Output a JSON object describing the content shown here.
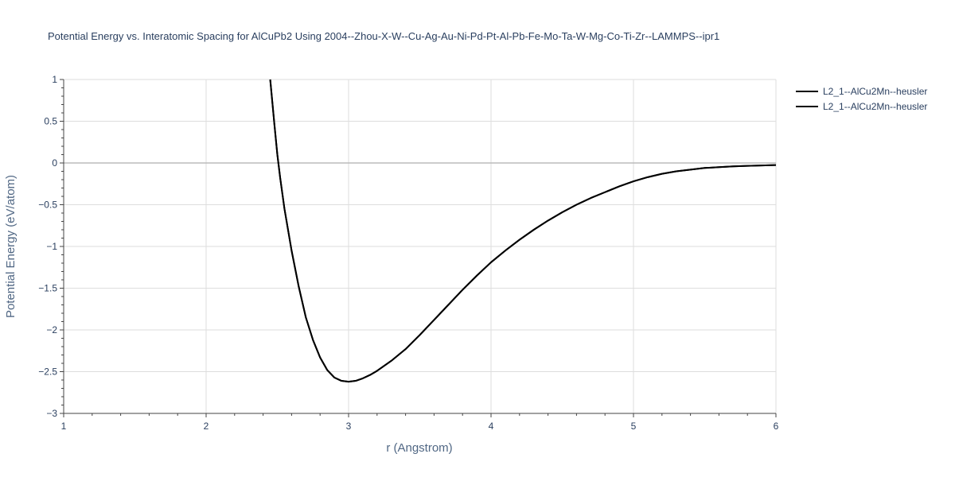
{
  "chart_data": {
    "type": "line",
    "title": "Potential Energy vs. Interatomic Spacing for AlCuPb2 Using 2004--Zhou-X-W--Cu-Ag-Au-Ni-Pd-Pt-Al-Pb-Fe-Mo-Ta-W-Mg-Co-Ti-Zr--LAMMPS--ipr1",
    "xlabel": "r (Angstrom)",
    "ylabel": "Potential Energy (eV/atom)",
    "xlim": [
      1,
      6
    ],
    "ylim": [
      -3,
      1
    ],
    "x_ticks": [
      1,
      2,
      3,
      4,
      5,
      6
    ],
    "x_tick_labels": [
      "1",
      "2",
      "3",
      "4",
      "5",
      "6"
    ],
    "y_ticks": [
      1,
      0.5,
      0,
      -0.5,
      -1,
      -1.5,
      -2,
      -2.5,
      -3
    ],
    "y_tick_labels": [
      "1",
      "0.5",
      "0",
      "−0.5",
      "−1",
      "−1.5",
      "−2",
      "−2.5",
      "−3"
    ],
    "grid": true,
    "legend_position": "top-right",
    "series": [
      {
        "name": "L2_1--AlCu2Mn--heusler",
        "color": "#000000",
        "x": [
          2.45,
          2.48,
          2.5,
          2.52,
          2.55,
          2.6,
          2.65,
          2.7,
          2.75,
          2.8,
          2.85,
          2.9,
          2.95,
          3.0,
          3.05,
          3.1,
          3.15,
          3.2,
          3.3,
          3.4,
          3.5,
          3.6,
          3.7,
          3.8,
          3.9,
          4.0,
          4.1,
          4.2,
          4.3,
          4.4,
          4.5,
          4.6,
          4.7,
          4.8,
          4.9,
          5.0,
          5.1,
          5.2,
          5.3,
          5.4,
          5.5,
          5.6,
          5.7,
          5.8,
          5.9,
          6.0
        ],
        "y": [
          1.0,
          0.45,
          0.1,
          -0.18,
          -0.55,
          -1.05,
          -1.48,
          -1.85,
          -2.12,
          -2.33,
          -2.48,
          -2.57,
          -2.61,
          -2.62,
          -2.61,
          -2.58,
          -2.54,
          -2.49,
          -2.37,
          -2.23,
          -2.06,
          -1.88,
          -1.7,
          -1.52,
          -1.35,
          -1.19,
          -1.05,
          -0.92,
          -0.8,
          -0.69,
          -0.59,
          -0.5,
          -0.42,
          -0.35,
          -0.28,
          -0.22,
          -0.17,
          -0.13,
          -0.1,
          -0.08,
          -0.06,
          -0.05,
          -0.04,
          -0.035,
          -0.03,
          -0.025
        ]
      },
      {
        "name": "L2_1--AlCu2Mn--heusler",
        "color": "#000000",
        "x": [
          2.45,
          2.48,
          2.5,
          2.52,
          2.55,
          2.6,
          2.65,
          2.7,
          2.75,
          2.8,
          2.85,
          2.9,
          2.95,
          3.0,
          3.05,
          3.1,
          3.15,
          3.2,
          3.3,
          3.4,
          3.5,
          3.6,
          3.7,
          3.8,
          3.9,
          4.0,
          4.1,
          4.2,
          4.3,
          4.4,
          4.5,
          4.6,
          4.7,
          4.8,
          4.9,
          5.0,
          5.1,
          5.2,
          5.3,
          5.4,
          5.5,
          5.6,
          5.7,
          5.8,
          5.9,
          6.0
        ],
        "y": [
          1.0,
          0.45,
          0.1,
          -0.18,
          -0.55,
          -1.05,
          -1.48,
          -1.85,
          -2.12,
          -2.33,
          -2.48,
          -2.57,
          -2.61,
          -2.62,
          -2.61,
          -2.58,
          -2.54,
          -2.49,
          -2.37,
          -2.23,
          -2.06,
          -1.88,
          -1.7,
          -1.52,
          -1.35,
          -1.19,
          -1.05,
          -0.92,
          -0.8,
          -0.69,
          -0.59,
          -0.5,
          -0.42,
          -0.35,
          -0.28,
          -0.22,
          -0.17,
          -0.13,
          -0.1,
          -0.08,
          -0.06,
          -0.05,
          -0.04,
          -0.035,
          -0.03,
          -0.025
        ]
      }
    ]
  }
}
